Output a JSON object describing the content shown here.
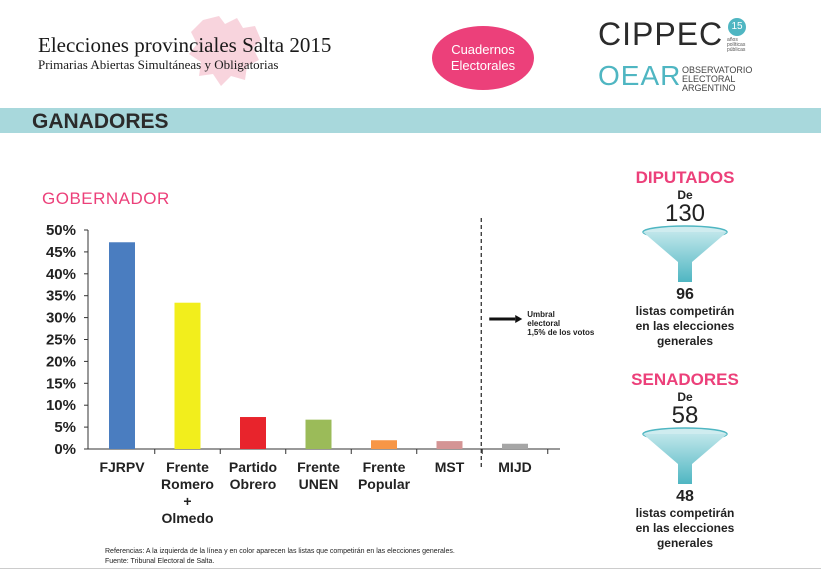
{
  "header": {
    "title": "Elecciones provinciales Salta 2015",
    "subtitle": "Primarias Abiertas Simultáneas y Obligatorias",
    "badge_line1": "Cuadernos",
    "badge_line2": "Electorales",
    "logo_cippec": "CIPPEC",
    "logo_cippec_years": "15",
    "logo_cippec_years_label": "años",
    "logo_cippec_tagline": "políticas públicas",
    "logo_oear": "OEAR",
    "logo_oear_line1": "OBSERVATORIO",
    "logo_oear_line2": "ELECTORAL",
    "logo_oear_line3": "ARGENTINO"
  },
  "band_label": "GANADORES",
  "chart_data": {
    "type": "bar",
    "title": "GOBERNADOR",
    "categories": [
      [
        "FJRPV"
      ],
      [
        "Frente",
        "Romero",
        "+",
        "Olmedo"
      ],
      [
        "Partido",
        "Obrero"
      ],
      [
        "Frente",
        "UNEN"
      ],
      [
        "Frente",
        "Popular"
      ],
      [
        "MST"
      ],
      [
        "MIJD"
      ]
    ],
    "values": [
      47.2,
      33.4,
      7.3,
      6.7,
      2.0,
      1.8,
      1.2
    ],
    "colors": [
      "#4a7dc0",
      "#f2ee1c",
      "#e8242c",
      "#9bbb59",
      "#f79646",
      "#d49494",
      "#a6a6a6"
    ],
    "ylim": [
      0,
      50
    ],
    "yticks": [
      "0%",
      "5%",
      "10%",
      "15%",
      "20%",
      "25%",
      "30%",
      "35%",
      "40%",
      "45%",
      "50%"
    ],
    "threshold_after_index": 5,
    "threshold_label": [
      "Umbral",
      "electoral",
      "1,5% de los votos"
    ]
  },
  "diputados": {
    "heading": "DIPUTADOS",
    "de": "De",
    "total": "130",
    "result": "96",
    "text1": "listas competirán",
    "text2": "en las elecciones",
    "text3": "generales"
  },
  "senadores": {
    "heading": "SENADORES",
    "de": "De",
    "total": "58",
    "result": "48",
    "text1": "listas competirán",
    "text2": "en las elecciones",
    "text3": "generales"
  },
  "footer": {
    "referencias": "Referencias: A la izquierda de la línea y en color aparecen las listas que competirán en las elecciones generales.",
    "fuente": "Fuente: Tribunal Electoral de Salta."
  },
  "colors": {
    "accent": "#ec407a",
    "band": "#a8d8dc",
    "teal": "#4fb6c2"
  }
}
